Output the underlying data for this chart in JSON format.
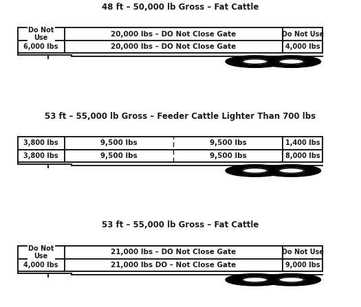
{
  "trailers": [
    {
      "title": "48 ft – 50,000 lb Gross – Fat Cattle",
      "left_section": {
        "top": "Do Not\nUse",
        "bottom": "6,000 lbs",
        "has_diag": true
      },
      "middle_sections": [
        {
          "text": "20,000 lbs – DO Not Close Gate"
        },
        {
          "text": "20,000 lbs – DO Not Close Gate"
        }
      ],
      "right_section": {
        "top": "Do Not Use",
        "bottom": "4,000 lbs"
      },
      "middle_dividers": false,
      "left_dashes": false,
      "right_dashes": true
    },
    {
      "title": "53 ft – 55,000 lb Gross – Feeder Cattle Lighter Than 700 lbs",
      "left_section": {
        "top": "3,800 lbs",
        "bottom": "3,800 lbs",
        "has_diag": false
      },
      "middle_sections": [
        {
          "text": "9,500 lbs"
        },
        {
          "text": "9,500 lbs"
        },
        {
          "text": "9,500 lbs"
        },
        {
          "text": "9,500 lbs"
        }
      ],
      "right_section": {
        "top": "1,400 lbs",
        "bottom": "8,000 lbs"
      },
      "middle_dividers": true,
      "left_dashes": true,
      "right_dashes": true
    },
    {
      "title": "53 ft – 55,000 lb Gross – Fat Cattle",
      "left_section": {
        "top": "Do Not\nUse",
        "bottom": "4,000 lbs",
        "has_diag": true
      },
      "middle_sections": [
        {
          "text": "21,000 lbs – DO Not Close Gate"
        },
        {
          "text": "21,000 lbs DO – Not Close Gate"
        }
      ],
      "right_section": {
        "top": "Do Not Use",
        "bottom": "9,000 lbs"
      },
      "middle_dividers": false,
      "left_dashes": false,
      "right_dashes": true
    }
  ],
  "bg_color": "#ffffff",
  "line_color": "#1a1a1a",
  "text_color": "#1a1a1a",
  "title_fontsize": 8.5,
  "label_fontsize": 7.5,
  "small_label_fontsize": 7.0
}
